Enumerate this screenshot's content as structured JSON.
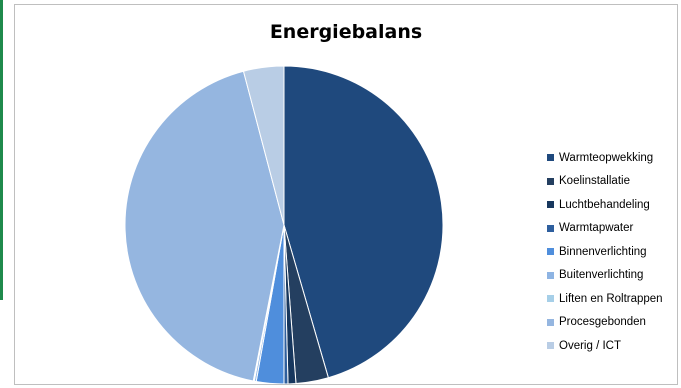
{
  "chart_data": {
    "type": "pie",
    "title": "Energiebalans",
    "slices": [
      {
        "name": "Warmteopwekking",
        "value": 45.5,
        "color": "#1f497d"
      },
      {
        "name": "Koelinstallatie",
        "value": 3.3,
        "color": "#243f60"
      },
      {
        "name": "Luchtbehandeling",
        "value": 0.8,
        "color": "#17375e"
      },
      {
        "name": "Warmtapwater",
        "value": 0.4,
        "color": "#2e5f9e"
      },
      {
        "name": "Binnenverlichting",
        "value": 2.8,
        "color": "#4f8edc"
      },
      {
        "name": "Buitenverlichting",
        "value": 0.2,
        "color": "#8eb4e3"
      },
      {
        "name": "Liften en Roltrappen",
        "value": 0.1,
        "color": "#a6cfe8"
      },
      {
        "name": "Procesgebonden",
        "value": 42.8,
        "color": "#95b6e0"
      },
      {
        "name": "Overig / ICT",
        "value": 4.1,
        "color": "#b9cde5"
      }
    ],
    "start_angle_deg": 0,
    "direction": "clockwise",
    "legend_position": "right"
  }
}
